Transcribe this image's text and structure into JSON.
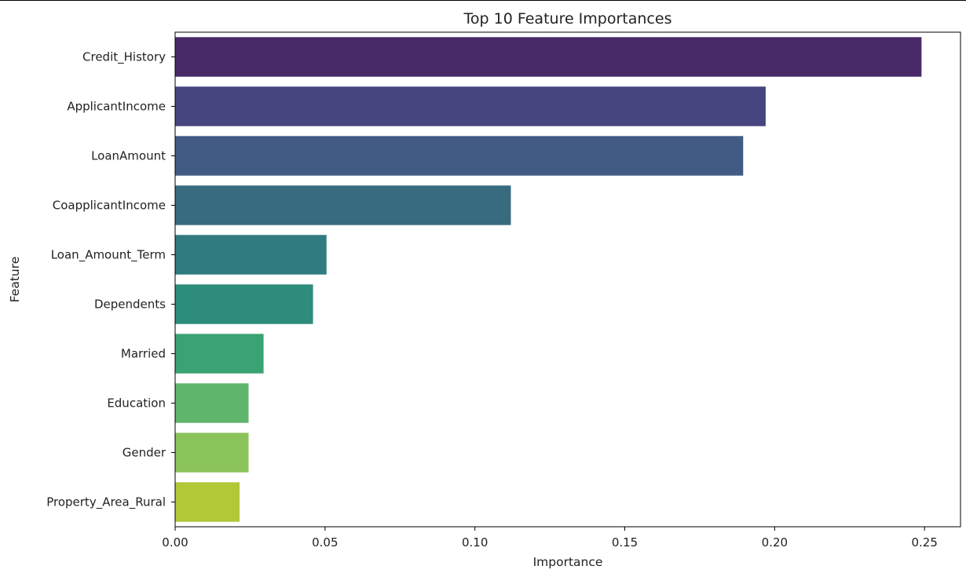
{
  "chart_data": {
    "type": "bar",
    "orientation": "horizontal",
    "title": "Top 10 Feature Importances",
    "xlabel": "Importance",
    "ylabel": "Feature",
    "categories": [
      "Credit_History",
      "ApplicantIncome",
      "LoanAmount",
      "CoapplicantIncome",
      "Loan_Amount_Term",
      "Dependents",
      "Married",
      "Education",
      "Gender",
      "Property_Area_Rural"
    ],
    "values": [
      0.249,
      0.197,
      0.1895,
      0.112,
      0.0505,
      0.046,
      0.0295,
      0.0245,
      0.0245,
      0.0215
    ],
    "colors": [
      "#482a69",
      "#47457f",
      "#425b84",
      "#386b80",
      "#307b7f",
      "#2d8c7b",
      "#3ba273",
      "#60b56c",
      "#8bc35b",
      "#b2c837"
    ],
    "xlim": [
      0,
      0.262
    ],
    "xticks": [
      0.0,
      0.05,
      0.1,
      0.15,
      0.2,
      0.25
    ],
    "xtick_labels": [
      "0.00",
      "0.05",
      "0.10",
      "0.15",
      "0.20",
      "0.25"
    ],
    "grid": false,
    "legend": "none"
  }
}
